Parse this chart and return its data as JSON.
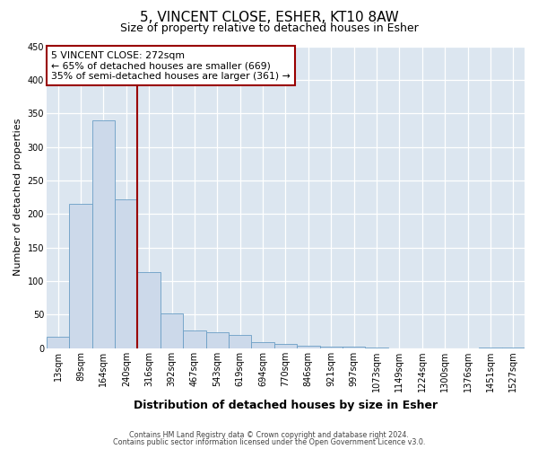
{
  "title": "5, VINCENT CLOSE, ESHER, KT10 8AW",
  "subtitle": "Size of property relative to detached houses in Esher",
  "xlabel": "Distribution of detached houses by size in Esher",
  "ylabel": "Number of detached properties",
  "bar_color": "#ccd9ea",
  "bar_edge_color": "#6a9ec5",
  "plot_bg_color": "#dce6f0",
  "fig_bg_color": "#ffffff",
  "grid_color": "#ffffff",
  "categories": [
    "13sqm",
    "89sqm",
    "164sqm",
    "240sqm",
    "316sqm",
    "392sqm",
    "467sqm",
    "543sqm",
    "619sqm",
    "694sqm",
    "770sqm",
    "846sqm",
    "921sqm",
    "997sqm",
    "1073sqm",
    "1149sqm",
    "1224sqm",
    "1300sqm",
    "1376sqm",
    "1451sqm",
    "1527sqm"
  ],
  "values": [
    17,
    215,
    340,
    222,
    113,
    52,
    26,
    24,
    20,
    9,
    6,
    4,
    3,
    2,
    1,
    0,
    0,
    0,
    0,
    1,
    1
  ],
  "vline_x": 3.5,
  "vline_color": "#990000",
  "annotation_title": "5 VINCENT CLOSE: 272sqm",
  "annotation_line1": "← 65% of detached houses are smaller (669)",
  "annotation_line2": "35% of semi-detached houses are larger (361) →",
  "annotation_box_edgecolor": "#990000",
  "ylim": [
    0,
    450
  ],
  "yticks": [
    0,
    50,
    100,
    150,
    200,
    250,
    300,
    350,
    400,
    450
  ],
  "title_fontsize": 11,
  "subtitle_fontsize": 9,
  "xlabel_fontsize": 9,
  "ylabel_fontsize": 8,
  "tick_fontsize": 7,
  "footer1": "Contains HM Land Registry data © Crown copyright and database right 2024.",
  "footer2": "Contains public sector information licensed under the Open Government Licence v3.0."
}
